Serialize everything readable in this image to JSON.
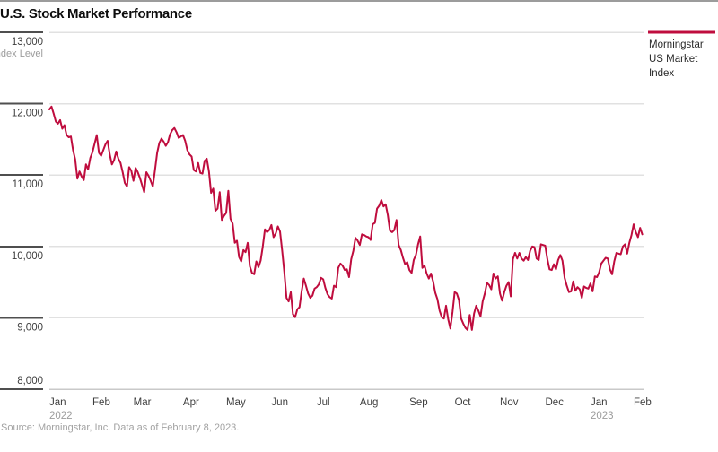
{
  "header": {
    "title": "U.S. Stock Market Performance"
  },
  "legend": {
    "line1": "Morningstar",
    "line2": "US Market",
    "line3": "Index"
  },
  "footer": {
    "source": "Source: Morningstar, Inc. Data as of February 8, 2023."
  },
  "colors": {
    "line": "#bf0d3e",
    "grid_light": "#e1e1e1",
    "grid_bottom": "#c9c9c9",
    "tick_dark": "#4f4f4f",
    "axis_text": "#3d3d3d",
    "muted_text": "#9c9c9c"
  },
  "chart_data": {
    "type": "line",
    "title": "U.S. Stock Market Performance",
    "series_name": "Morningstar US Market Index",
    "grid": true,
    "legend_position": "top-right",
    "y_axis": {
      "label": "Index Level",
      "min": 8000,
      "max": 13000,
      "ticks": [
        13000,
        12000,
        11000,
        10000,
        9000,
        8000
      ],
      "tick_labels": [
        "13,000",
        "12,000",
        "11,000",
        "10,000",
        "9,000",
        "8,000"
      ]
    },
    "x_axis": {
      "total_days": 276,
      "ticks": [
        {
          "label": "Jan",
          "day": 0,
          "year": "2022"
        },
        {
          "label": "Feb",
          "day": 20
        },
        {
          "label": "Mar",
          "day": 39
        },
        {
          "label": "Apr",
          "day": 62
        },
        {
          "label": "May",
          "day": 82
        },
        {
          "label": "Jun",
          "day": 103
        },
        {
          "label": "Jul",
          "day": 124
        },
        {
          "label": "Aug",
          "day": 144
        },
        {
          "label": "Sep",
          "day": 167
        },
        {
          "label": "Oct",
          "day": 188
        },
        {
          "label": "Nov",
          "day": 209
        },
        {
          "label": "Dec",
          "day": 230
        },
        {
          "label": "Jan",
          "day": 251,
          "year": "2023"
        },
        {
          "label": "Feb",
          "day": 271
        }
      ]
    },
    "values": [
      11920,
      11960,
      11860,
      11750,
      11720,
      11770,
      11650,
      11700,
      11560,
      11530,
      11540,
      11350,
      11220,
      10950,
      11050,
      10980,
      10930,
      11150,
      11080,
      11240,
      11320,
      11440,
      11560,
      11310,
      11270,
      11350,
      11430,
      11480,
      11290,
      11150,
      11210,
      11330,
      11230,
      11170,
      11040,
      10890,
      10840,
      11110,
      11060,
      10920,
      11100,
      11040,
      10960,
      10860,
      10760,
      11040,
      10990,
      10920,
      10840,
      11070,
      11310,
      11450,
      11510,
      11470,
      11410,
      11460,
      11570,
      11630,
      11660,
      11600,
      11520,
      11540,
      11560,
      11480,
      11350,
      11290,
      11260,
      11070,
      11050,
      11170,
      11030,
      11020,
      11200,
      11230,
      11050,
      10750,
      10810,
      10500,
      10530,
      10760,
      10370,
      10430,
      10470,
      10780,
      10390,
      10320,
      10050,
      10080,
      9850,
      9790,
      9950,
      9920,
      10050,
      9720,
      9630,
      9610,
      9790,
      9710,
      9800,
      10000,
      10240,
      10200,
      10230,
      10300,
      10130,
      10180,
      10280,
      10210,
      9940,
      9640,
      9280,
      9230,
      9360,
      9050,
      9010,
      9120,
      9150,
      9370,
      9550,
      9450,
      9340,
      9280,
      9310,
      9410,
      9430,
      9470,
      9560,
      9540,
      9420,
      9330,
      9290,
      9270,
      9450,
      9430,
      9700,
      9760,
      9730,
      9670,
      9680,
      9570,
      9820,
      9940,
      10120,
      10080,
      10020,
      10170,
      10160,
      10140,
      10130,
      10090,
      10310,
      10330,
      10530,
      10570,
      10650,
      10560,
      10590,
      10440,
      10220,
      10200,
      10230,
      10370,
      10020,
      9950,
      9840,
      9750,
      9780,
      9670,
      9630,
      9810,
      9880,
      10030,
      10140,
      9700,
      9730,
      9620,
      9550,
      9620,
      9510,
      9350,
      9260,
      9100,
      9010,
      8990,
      9170,
      8980,
      8850,
      9080,
      9360,
      9340,
      9250,
      8990,
      8920,
      8860,
      8830,
      9040,
      8830,
      9060,
      9170,
      9100,
      9020,
      9230,
      9340,
      9490,
      9460,
      9400,
      9620,
      9550,
      9580,
      9340,
      9240,
      9360,
      9450,
      9500,
      9300,
      9820,
      9910,
      9830,
      9910,
      9830,
      9800,
      9850,
      9810,
      9940,
      10000,
      9990,
      9830,
      9810,
      10030,
      10020,
      10010,
      9820,
      9680,
      9670,
      9750,
      9680,
      9810,
      9880,
      9800,
      9560,
      9450,
      9360,
      9370,
      9510,
      9380,
      9430,
      9400,
      9280,
      9440,
      9420,
      9410,
      9480,
      9370,
      9580,
      9570,
      9640,
      9760,
      9800,
      9840,
      9830,
      9680,
      9610,
      9790,
      9910,
      9900,
      9890,
      10000,
      10030,
      9900,
      10050,
      10160,
      10310,
      10200,
      10130,
      10260,
      10170
    ]
  }
}
